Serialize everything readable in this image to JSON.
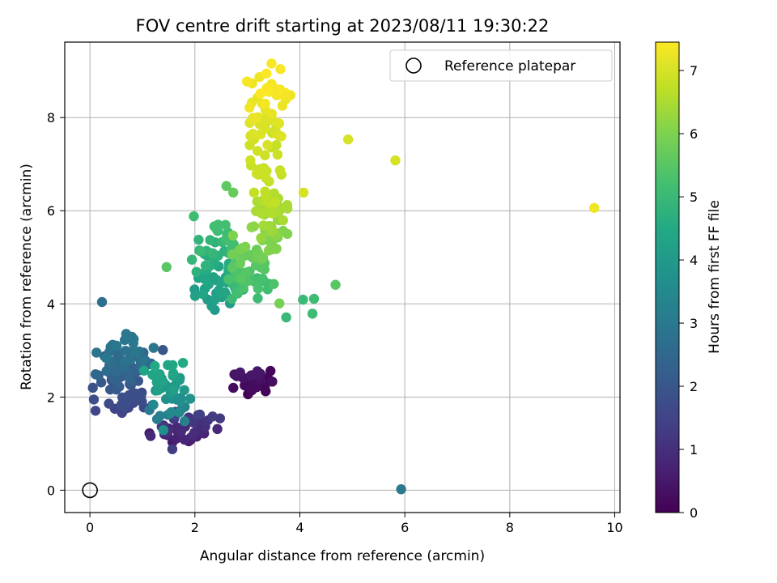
{
  "chart_data": {
    "type": "scatter",
    "title": "FOV centre drift starting at 2023/08/11 19:30:22",
    "xlabel": "Angular distance from reference (arcmin)",
    "ylabel": "Rotation from reference (arcmin)",
    "xlim": [
      -0.48,
      10.1
    ],
    "ylim": [
      -0.48,
      9.62
    ],
    "xticks": [
      0,
      2,
      4,
      6,
      8,
      10
    ],
    "yticks": [
      0,
      2,
      4,
      6,
      8
    ],
    "grid": true,
    "legend": {
      "position": "top-right",
      "entries": [
        {
          "label": "Reference platepar",
          "marker": "open-circle"
        }
      ]
    },
    "reference_point": {
      "x": 0,
      "y": 0
    },
    "colorbar": {
      "label": "Hours from first FF file",
      "colormap": "viridis",
      "range": [
        0,
        7.45
      ],
      "ticks": [
        0,
        1,
        2,
        3,
        4,
        5,
        6,
        7
      ]
    },
    "clusters": [
      {
        "hours_range": [
          0.0,
          0.5
        ],
        "x_range": [
          2.6,
          3.5
        ],
        "y_range": [
          2.0,
          2.6
        ],
        "count": 22
      },
      {
        "hours_range": [
          0.5,
          1.5
        ],
        "x_range": [
          1.1,
          2.6
        ],
        "y_range": [
          0.9,
          1.8
        ],
        "count": 40
      },
      {
        "hours_range": [
          1.5,
          3.0
        ],
        "x_range": [
          0.0,
          1.3
        ],
        "y_range": [
          1.6,
          3.4
        ],
        "count": 95
      },
      {
        "hours_range": [
          3.0,
          4.5
        ],
        "x_range": [
          1.0,
          2.0
        ],
        "y_range": [
          1.3,
          2.8
        ],
        "count": 45
      },
      {
        "hours_range": [
          4.0,
          5.2
        ],
        "x_range": [
          1.9,
          3.0
        ],
        "y_range": [
          3.8,
          5.8
        ],
        "count": 75
      },
      {
        "hours_range": [
          5.0,
          6.0
        ],
        "x_range": [
          2.5,
          3.6
        ],
        "y_range": [
          4.0,
          5.5
        ],
        "count": 55
      },
      {
        "hours_range": [
          6.0,
          6.9
        ],
        "x_range": [
          3.0,
          3.8
        ],
        "y_range": [
          5.0,
          7.0
        ],
        "count": 60
      },
      {
        "hours_range": [
          6.8,
          7.45
        ],
        "x_range": [
          2.9,
          3.8
        ],
        "y_range": [
          6.8,
          9.2
        ],
        "count": 55
      }
    ],
    "outliers": [
      {
        "x": 0.23,
        "y": 4.04,
        "h": 2.7
      },
      {
        "x": 5.93,
        "y": 0.02,
        "h": 3.0
      },
      {
        "x": 9.61,
        "y": 6.06,
        "h": 7.3
      },
      {
        "x": 5.82,
        "y": 7.08,
        "h": 7.0
      },
      {
        "x": 4.92,
        "y": 7.53,
        "h": 7.0
      },
      {
        "x": 4.07,
        "y": 6.39,
        "h": 7.0
      },
      {
        "x": 4.68,
        "y": 4.41,
        "h": 5.5
      },
      {
        "x": 4.24,
        "y": 3.79,
        "h": 5.1
      },
      {
        "x": 4.27,
        "y": 4.11,
        "h": 5.1
      },
      {
        "x": 4.06,
        "y": 4.09,
        "h": 5.0
      },
      {
        "x": 3.74,
        "y": 3.71,
        "h": 5.0
      },
      {
        "x": 3.61,
        "y": 4.01,
        "h": 5.9
      },
      {
        "x": 1.46,
        "y": 4.79,
        "h": 5.5
      },
      {
        "x": 1.98,
        "y": 5.88,
        "h": 5.1
      },
      {
        "x": 2.6,
        "y": 6.53,
        "h": 5.6
      },
      {
        "x": 2.73,
        "y": 6.39,
        "h": 5.7
      },
      {
        "x": 3.46,
        "y": 9.16,
        "h": 7.4
      },
      {
        "x": 3.63,
        "y": 9.04,
        "h": 7.4
      },
      {
        "x": 3.23,
        "y": 8.87,
        "h": 7.3
      },
      {
        "x": 3.82,
        "y": 8.48,
        "h": 7.3
      },
      {
        "x": 1.4,
        "y": 1.29,
        "h": 3.7
      },
      {
        "x": 1.57,
        "y": 0.88,
        "h": 1.3
      },
      {
        "x": 1.39,
        "y": 3.01,
        "h": 2.0
      },
      {
        "x": 3.44,
        "y": 2.56,
        "h": 0.1
      },
      {
        "x": 3.39,
        "y": 2.41,
        "h": 0.1
      }
    ]
  }
}
